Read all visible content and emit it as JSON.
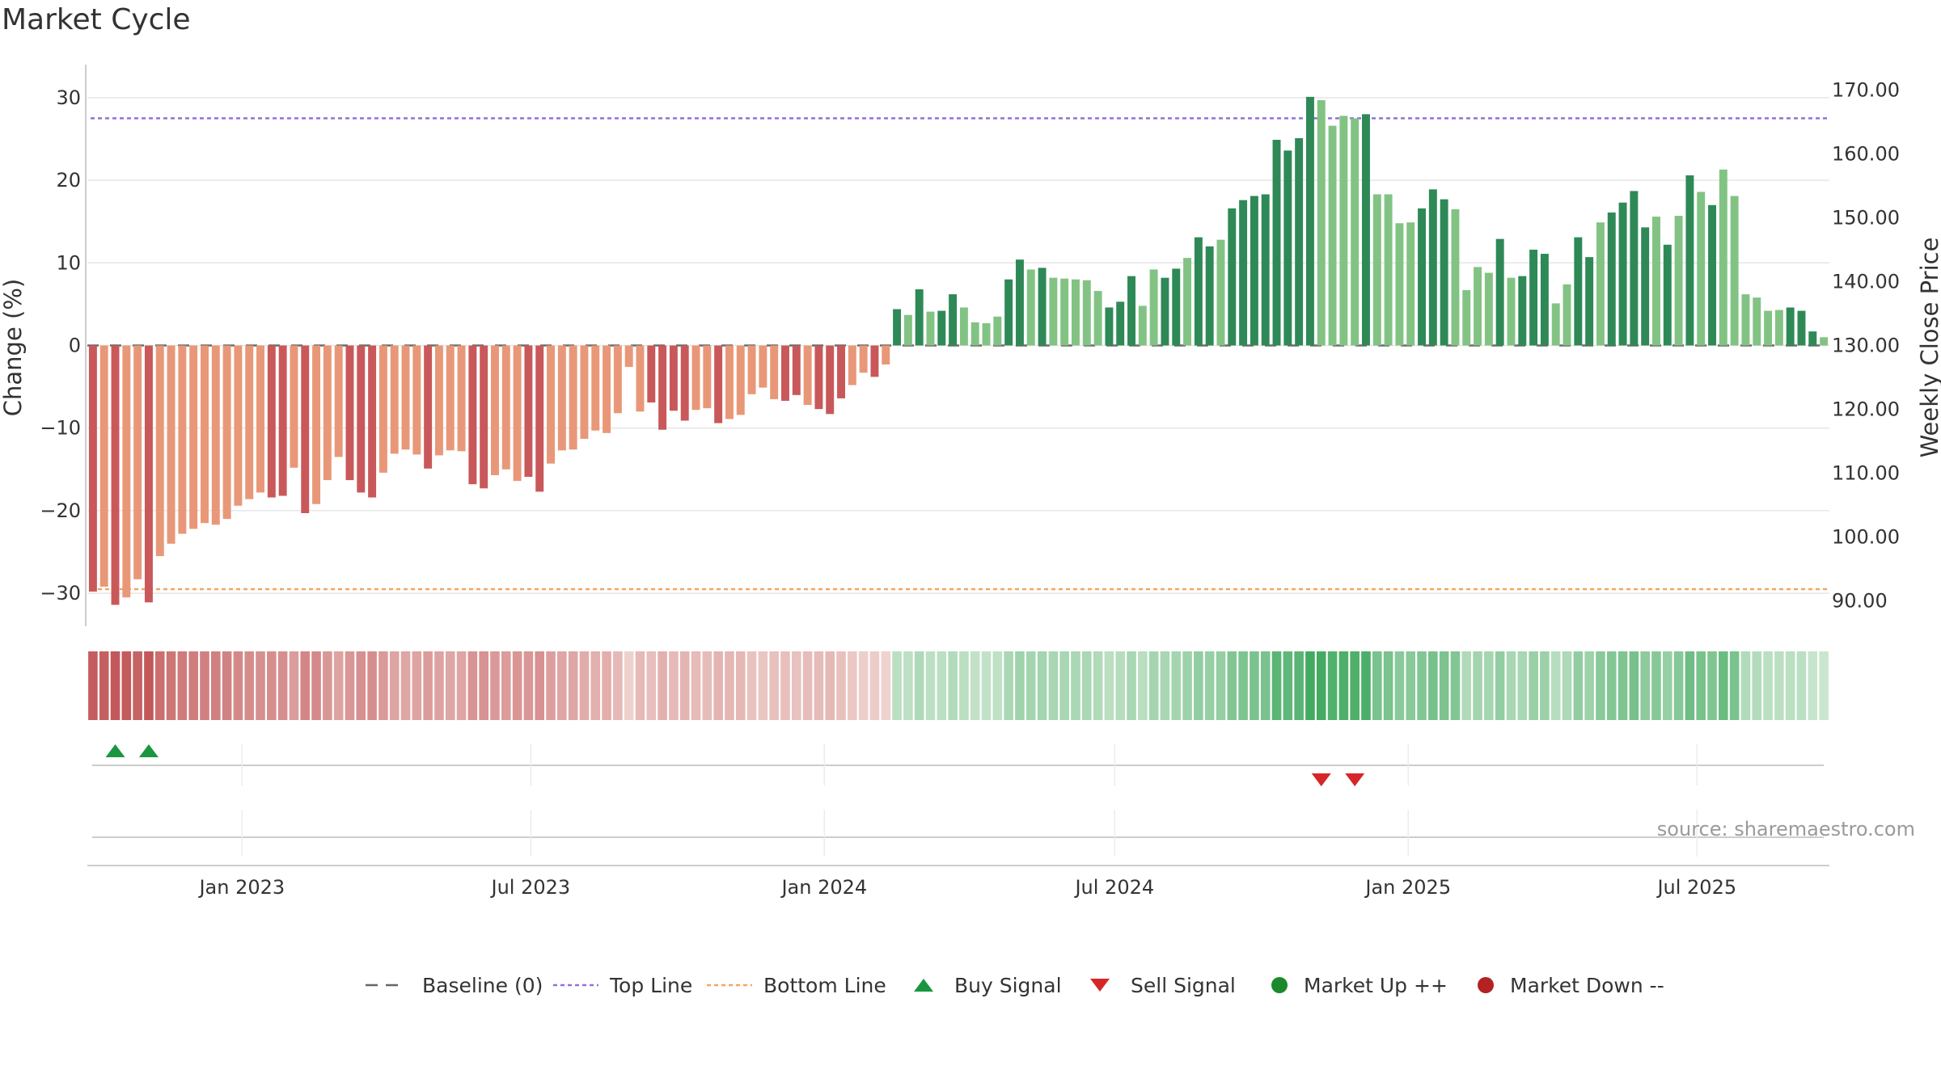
{
  "chart_data": {
    "type": "bar",
    "title": "Market Cycle",
    "ylabel": "Change (%)",
    "y2label": "Weekly Close Price",
    "ylim": [
      -34,
      34
    ],
    "y2lim": [
      86,
      174
    ],
    "yticks": [
      30,
      20,
      10,
      0,
      -10,
      -20,
      -30
    ],
    "ytick_labels": [
      "30",
      "20",
      "10",
      "0",
      "−10",
      "−20",
      "−30"
    ],
    "y2ticks": [
      170,
      160,
      150,
      140,
      130,
      120,
      110,
      100,
      90
    ],
    "y2tick_labels": [
      "170.00",
      "160.00",
      "150.00",
      "140.00",
      "130.00",
      "120.00",
      "110.00",
      "100.00",
      "90.00"
    ],
    "x_start": "2022-09-26",
    "x_end": "2025-09-22",
    "xticks": [
      "2023-01-01",
      "2023-07-01",
      "2024-01-01",
      "2024-07-01",
      "2025-01-01",
      "2025-07-01"
    ],
    "xtick_labels": [
      "Jan 2023",
      "Jul 2023",
      "Jan 2024",
      "Jul 2024",
      "Jan 2025",
      "Jul 2025"
    ],
    "top_line": 27.5,
    "bottom_line": -29.5,
    "values": [
      -29.8,
      -29.2,
      -31.4,
      -30.5,
      -28.3,
      -31.1,
      -25.5,
      -24.0,
      -22.8,
      -22.2,
      -21.5,
      -21.7,
      -21.0,
      -19.4,
      -18.6,
      -17.8,
      -18.4,
      -18.2,
      -14.8,
      -20.3,
      -19.2,
      -16.3,
      -13.5,
      -16.3,
      -17.8,
      -18.4,
      -15.4,
      -13.1,
      -12.6,
      -13.2,
      -14.9,
      -13.3,
      -12.7,
      -12.8,
      -16.8,
      -17.3,
      -15.7,
      -15.0,
      -16.4,
      -15.9,
      -17.7,
      -14.3,
      -12.7,
      -12.6,
      -11.3,
      -10.3,
      -10.6,
      -8.2,
      -2.6,
      -8.0,
      -6.9,
      -10.2,
      -7.9,
      -9.1,
      -7.8,
      -7.6,
      -9.4,
      -8.9,
      -8.4,
      -5.9,
      -5.1,
      -6.5,
      -6.7,
      -6.0,
      -7.2,
      -7.7,
      -8.3,
      -6.4,
      -4.8,
      -3.3,
      -3.8,
      -2.3,
      4.4,
      3.7,
      6.8,
      4.1,
      4.2,
      6.2,
      4.6,
      2.8,
      2.7,
      3.5,
      8.0,
      10.4,
      9.2,
      9.4,
      8.2,
      8.1,
      8.0,
      7.9,
      6.6,
      4.6,
      5.3,
      8.4,
      4.8,
      9.2,
      8.2,
      9.3,
      10.6,
      13.1,
      12.0,
      12.8,
      16.6,
      17.6,
      18.1,
      18.3,
      24.9,
      23.6,
      25.1,
      30.1,
      29.7,
      26.6,
      27.8,
      27.5,
      28.0,
      18.3,
      18.3,
      14.8,
      14.9,
      16.6,
      18.9,
      17.7,
      16.5,
      6.7,
      9.5,
      8.8,
      12.9,
      8.2,
      8.4,
      11.6,
      11.1,
      5.1,
      7.4,
      13.1,
      10.7,
      14.9,
      16.1,
      17.3,
      18.7,
      14.3,
      15.6,
      12.2,
      15.7,
      20.6,
      18.6,
      17.0,
      21.3,
      18.1,
      6.2,
      5.8,
      4.2,
      4.3,
      4.6,
      4.2,
      1.7,
      1.0
    ],
    "dark_bars": [
      0,
      2,
      5,
      16,
      17,
      19,
      23,
      24,
      25,
      30,
      34,
      35,
      39,
      40,
      50,
      51,
      52,
      53,
      56,
      62,
      63,
      65,
      66,
      67,
      70,
      72,
      74,
      76,
      77,
      82,
      83,
      85,
      91,
      92,
      93,
      96,
      97,
      99,
      100,
      102,
      103,
      104,
      105,
      106,
      107,
      108,
      109,
      114,
      119,
      120,
      121,
      126,
      128,
      129,
      130,
      133,
      134,
      136,
      137,
      138,
      139,
      141,
      143,
      145,
      152,
      153,
      154
    ],
    "colors": {
      "neg_dark": "#c9585a",
      "neg_light": "#e89878",
      "pos_dark": "#2e8957",
      "pos_light": "#82c384",
      "top_line": "#9370db",
      "bottom_line": "#f4a460",
      "baseline": "#555555",
      "grid": "#e6e6e6",
      "buy": "#1a9641",
      "sell": "#d62728",
      "up": "#1a8a2a",
      "down": "#b22222"
    },
    "buy_signals": [
      2,
      5
    ],
    "sell_signals": [
      110,
      113
    ],
    "source_text": "source: sharemaestro.com",
    "legend": [
      {
        "label": "Baseline (0)",
        "symbol": "dash"
      },
      {
        "label": "Top Line",
        "symbol": "dot-purple"
      },
      {
        "label": "Bottom Line",
        "symbol": "dot-orange"
      },
      {
        "label": "Buy Signal",
        "symbol": "tri-up"
      },
      {
        "label": "Sell Signal",
        "symbol": "tri-down"
      },
      {
        "label": "Market Up ++",
        "symbol": "circle-green"
      },
      {
        "label": "Market Down --",
        "symbol": "circle-red"
      }
    ]
  }
}
